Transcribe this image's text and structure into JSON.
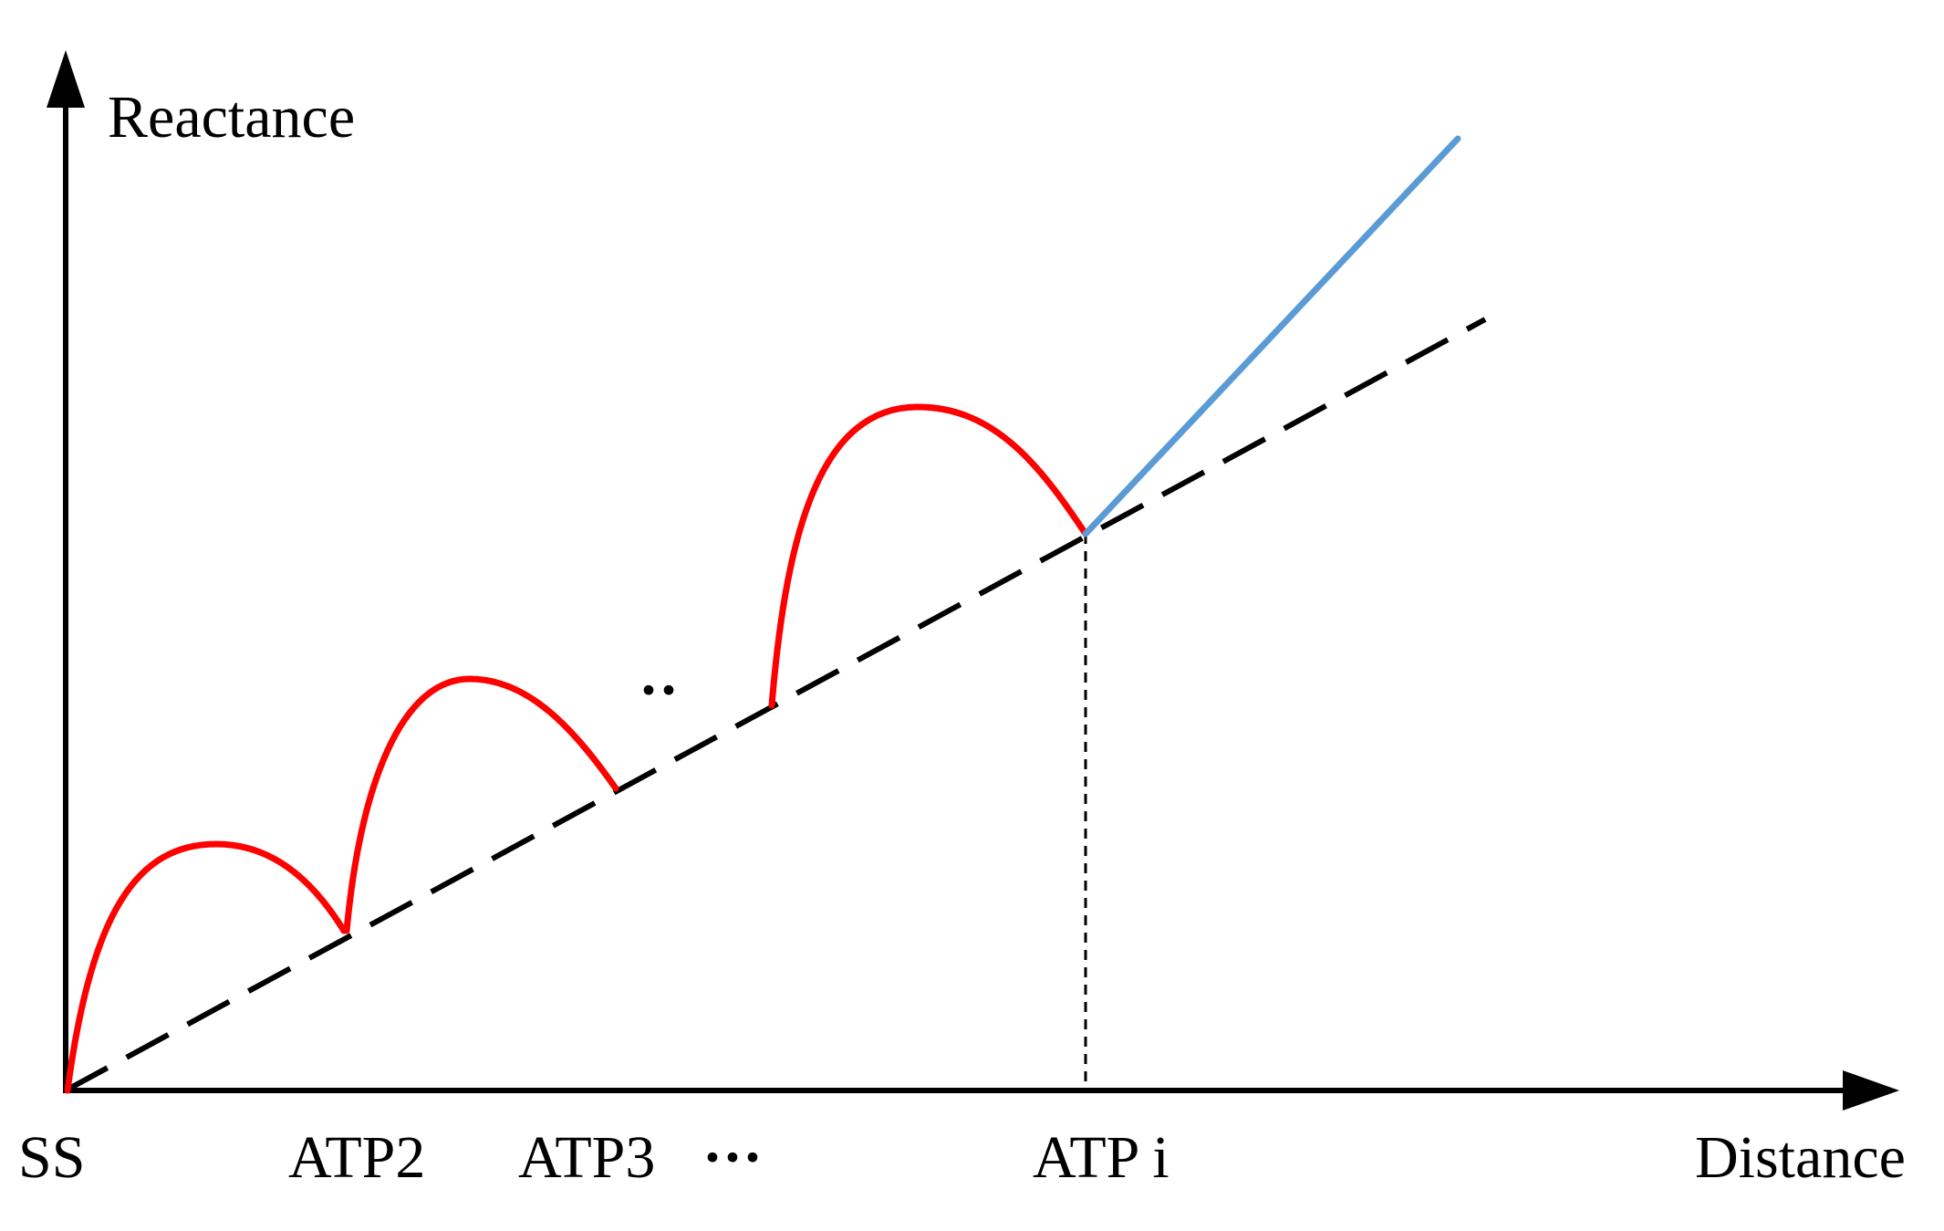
{
  "axes": {
    "y_label": "Reactance",
    "x_label": "Distance"
  },
  "x_ticks": {
    "ss": "SS",
    "atp2": "ATP2",
    "atp3": "ATP3",
    "ellipsis": "···",
    "atp_i": "ATP i"
  },
  "gap_marker": "··",
  "colors": {
    "axis": "#000000",
    "curve": "#ff0000",
    "extension": "#5b9bd5",
    "dashed": "#000000"
  }
}
